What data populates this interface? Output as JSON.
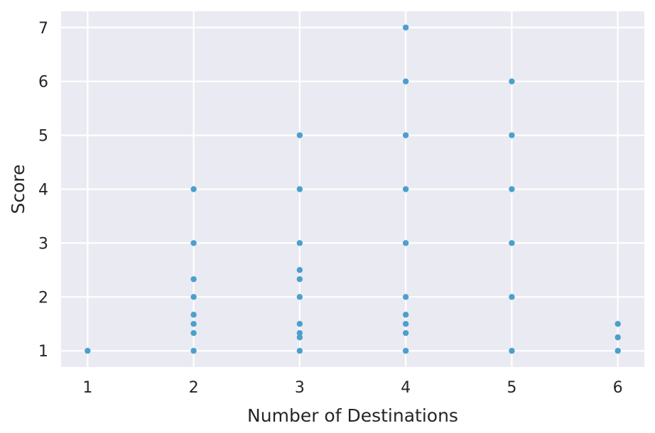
{
  "chart_data": {
    "type": "scatter",
    "title": "",
    "xlabel": "Number of Destinations",
    "ylabel": "Score",
    "xlim": [
      0.75,
      6.25
    ],
    "ylim": [
      0.7,
      7.3
    ],
    "xticks": [
      1,
      2,
      3,
      4,
      5,
      6
    ],
    "yticks": [
      1,
      2,
      3,
      4,
      5,
      6,
      7
    ],
    "grid": true,
    "colors": {
      "background": "#eaeaf2",
      "grid": "#ffffff",
      "point": "#4c9fcd",
      "text": "#262626"
    },
    "points": [
      {
        "x": 1,
        "y": 1
      },
      {
        "x": 2,
        "y": 1
      },
      {
        "x": 2,
        "y": 1.33
      },
      {
        "x": 2,
        "y": 1.5
      },
      {
        "x": 2,
        "y": 1.67
      },
      {
        "x": 2,
        "y": 2
      },
      {
        "x": 2,
        "y": 2.33
      },
      {
        "x": 2,
        "y": 3
      },
      {
        "x": 2,
        "y": 4
      },
      {
        "x": 3,
        "y": 1
      },
      {
        "x": 3,
        "y": 1.25
      },
      {
        "x": 3,
        "y": 1.33
      },
      {
        "x": 3,
        "y": 1.5
      },
      {
        "x": 3,
        "y": 2
      },
      {
        "x": 3,
        "y": 2.33
      },
      {
        "x": 3,
        "y": 2.5
      },
      {
        "x": 3,
        "y": 3
      },
      {
        "x": 3,
        "y": 4
      },
      {
        "x": 3,
        "y": 5
      },
      {
        "x": 4,
        "y": 1
      },
      {
        "x": 4,
        "y": 1.33
      },
      {
        "x": 4,
        "y": 1.5
      },
      {
        "x": 4,
        "y": 1.67
      },
      {
        "x": 4,
        "y": 2
      },
      {
        "x": 4,
        "y": 3
      },
      {
        "x": 4,
        "y": 4
      },
      {
        "x": 4,
        "y": 5
      },
      {
        "x": 4,
        "y": 6
      },
      {
        "x": 4,
        "y": 7
      },
      {
        "x": 5,
        "y": 1
      },
      {
        "x": 5,
        "y": 2
      },
      {
        "x": 5,
        "y": 3
      },
      {
        "x": 5,
        "y": 4
      },
      {
        "x": 5,
        "y": 5
      },
      {
        "x": 5,
        "y": 6
      },
      {
        "x": 6,
        "y": 1
      },
      {
        "x": 6,
        "y": 1.25
      },
      {
        "x": 6,
        "y": 1.5
      }
    ]
  }
}
